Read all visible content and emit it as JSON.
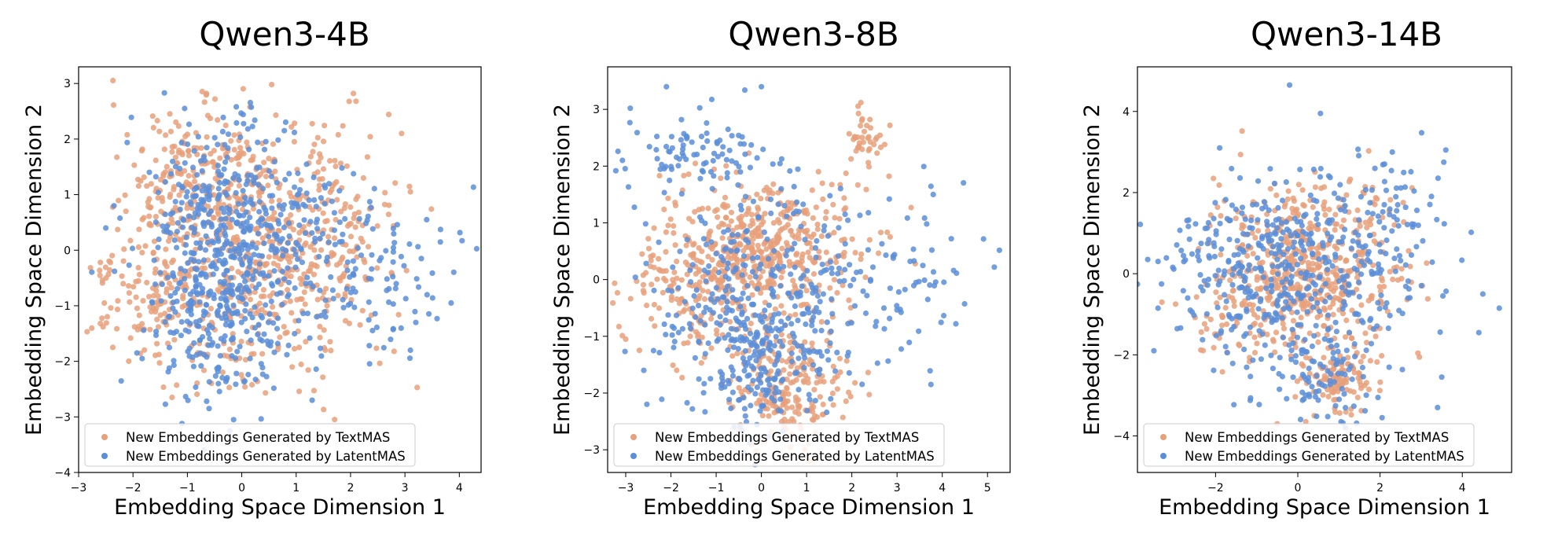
{
  "chart_data": [
    {
      "type": "scatter",
      "title": "Qwen3-4B",
      "xlabel": "Embedding Space Dimension 1",
      "ylabel": "Embedding Space Dimension 2",
      "xlim": [
        -3.0,
        4.4
      ],
      "ylim": [
        -4.0,
        3.3
      ],
      "xticks": [
        -3,
        -2,
        -1,
        0,
        1,
        2,
        3,
        4
      ],
      "yticks": [
        -4,
        -3,
        -2,
        -1,
        0,
        1,
        2,
        3
      ],
      "legend_position": "lower-left",
      "series": [
        {
          "name": "New Embeddings Generated by TextMAS",
          "color": "#e8a07a",
          "clusters": [
            {
              "center": [
                0.0,
                -0.6
              ],
              "spread": [
                1.1,
                0.9
              ],
              "count": 420
            },
            {
              "center": [
                -0.7,
                1.2
              ],
              "spread": [
                0.8,
                0.7
              ],
              "count": 260
            },
            {
              "center": [
                1.5,
                0.7
              ],
              "spread": [
                0.7,
                0.8
              ],
              "count": 140
            },
            {
              "center": [
                -1.8,
                -0.9
              ],
              "spread": [
                0.5,
                0.5
              ],
              "count": 80
            }
          ],
          "points": [
            [
              0.55,
              2.98
            ],
            [
              -0.65,
              2.82
            ],
            [
              2.1,
              2.68
            ],
            [
              -2.6,
              -0.22
            ],
            [
              -2.55,
              -1.38
            ],
            [
              2.8,
              -1.82
            ],
            [
              3.1,
              1.05
            ]
          ]
        },
        {
          "name": "New Embeddings Generated by LatentMAS",
          "color": "#5b8ed8",
          "clusters": [
            {
              "center": [
                -0.3,
                0.6
              ],
              "spread": [
                0.7,
                0.8
              ],
              "count": 320
            },
            {
              "center": [
                -0.4,
                -1.3
              ],
              "spread": [
                0.6,
                0.7
              ],
              "count": 200
            },
            {
              "center": [
                0.8,
                0.0
              ],
              "spread": [
                1.2,
                1.0
              ],
              "count": 180
            },
            {
              "center": [
                2.6,
                -0.6
              ],
              "spread": [
                0.6,
                0.7
              ],
              "count": 60
            }
          ],
          "points": [
            [
              -0.1,
              2.58
            ],
            [
              -1.05,
              2.55
            ],
            [
              -1.1,
              -3.12
            ],
            [
              -0.15,
              -3.05
            ],
            [
              -0.22,
              -3.25
            ],
            [
              3.4,
              0.55
            ],
            [
              4.05,
              0.17
            ],
            [
              3.85,
              -0.95
            ],
            [
              3.2,
              -1.3
            ],
            [
              3.1,
              -1.8
            ],
            [
              -2.5,
              0.4
            ],
            [
              -2.35,
              0.8
            ]
          ]
        }
      ]
    },
    {
      "type": "scatter",
      "title": "Qwen3-8B",
      "xlabel": "Embedding Space Dimension 1",
      "ylabel": "Embedding Space Dimension 2",
      "xlim": [
        -3.4,
        5.5
      ],
      "ylim": [
        -3.4,
        3.75
      ],
      "xticks": [
        -3,
        -2,
        -1,
        0,
        1,
        2,
        3,
        4,
        5
      ],
      "yticks": [
        -3,
        -2,
        -1,
        0,
        1,
        2,
        3
      ],
      "legend_position": "lower-left",
      "series": [
        {
          "name": "New Embeddings Generated by TextMAS",
          "color": "#e8a07a",
          "clusters": [
            {
              "center": [
                0.0,
                0.55
              ],
              "spread": [
                1.0,
                0.6
              ],
              "count": 460
            },
            {
              "center": [
                0.6,
                -1.8
              ],
              "spread": [
                0.7,
                0.5
              ],
              "count": 210
            },
            {
              "center": [
                -1.3,
                -0.3
              ],
              "spread": [
                0.9,
                0.6
              ],
              "count": 150
            },
            {
              "center": [
                2.3,
                2.5
              ],
              "spread": [
                0.25,
                0.35
              ],
              "count": 40
            }
          ],
          "points": [
            [
              -3.0,
              -1.05
            ],
            [
              2.2,
              3.12
            ],
            [
              2.4,
              2.82
            ],
            [
              0.5,
              -2.55
            ],
            [
              1.2,
              -2.7
            ]
          ]
        },
        {
          "name": "New Embeddings Generated by LatentMAS",
          "color": "#5b8ed8",
          "clusters": [
            {
              "center": [
                0.1,
                -0.3
              ],
              "spread": [
                1.2,
                0.9
              ],
              "count": 340
            },
            {
              "center": [
                -1.3,
                2.2
              ],
              "spread": [
                0.8,
                0.5
              ],
              "count": 90
            },
            {
              "center": [
                0.0,
                -1.6
              ],
              "spread": [
                0.6,
                0.6
              ],
              "count": 120
            },
            {
              "center": [
                3.1,
                0.2
              ],
              "spread": [
                0.8,
                0.9
              ],
              "count": 60
            }
          ],
          "points": [
            [
              0.0,
              3.4
            ],
            [
              -2.1,
              3.4
            ],
            [
              -2.9,
              3.02
            ],
            [
              5.15,
              0.22
            ],
            [
              4.3,
              -0.78
            ],
            [
              3.75,
              -1.85
            ],
            [
              3.8,
              1.5
            ],
            [
              4.2,
              0.72
            ],
            [
              -2.6,
              -1.6
            ],
            [
              -0.6,
              -2.6
            ]
          ]
        }
      ]
    },
    {
      "type": "scatter",
      "title": "Qwen3-14B",
      "xlabel": "Embedding Space Dimension 1",
      "ylabel": "Embedding Space Dimension 2",
      "xlim": [
        -3.9,
        5.2
      ],
      "ylim": [
        -4.9,
        5.1
      ],
      "xticks": [
        -2,
        0,
        2,
        4
      ],
      "yticks": [
        -4,
        -2,
        0,
        2,
        4
      ],
      "legend_position": "lower-left",
      "series": [
        {
          "name": "New Embeddings Generated by TextMAS",
          "color": "#e8a07a",
          "clusters": [
            {
              "center": [
                0.2,
                0.2
              ],
              "spread": [
                1.1,
                1.0
              ],
              "count": 520
            },
            {
              "center": [
                1.0,
                -2.6
              ],
              "spread": [
                0.45,
                0.45
              ],
              "count": 110
            },
            {
              "center": [
                -1.4,
                -1.0
              ],
              "spread": [
                0.6,
                0.5
              ],
              "count": 60
            }
          ],
          "points": [
            [
              2.35,
              1.2
            ],
            [
              -0.5,
              -3.7
            ],
            [
              0.4,
              -3.5
            ]
          ]
        },
        {
          "name": "New Embeddings Generated by LatentMAS",
          "color": "#5b8ed8",
          "clusters": [
            {
              "center": [
                -0.4,
                0.0
              ],
              "spread": [
                1.4,
                1.1
              ],
              "count": 440
            },
            {
              "center": [
                0.6,
                -2.4
              ],
              "spread": [
                0.8,
                0.7
              ],
              "count": 90
            },
            {
              "center": [
                2.2,
                1.3
              ],
              "spread": [
                0.7,
                0.9
              ],
              "count": 70
            }
          ],
          "points": [
            [
              -0.2,
              4.65
            ],
            [
              0.55,
              3.95
            ],
            [
              -1.9,
              3.1
            ],
            [
              3.6,
              3.05
            ],
            [
              3.55,
              2.75
            ],
            [
              4.9,
              -0.85
            ],
            [
              4.5,
              -0.5
            ],
            [
              3.5,
              -2.55
            ],
            [
              -3.5,
              -1.9
            ],
            [
              -3.4,
              -0.85
            ],
            [
              -3.65,
              0.35
            ],
            [
              2.05,
              -3.55
            ],
            [
              3.4,
              -3.3
            ]
          ]
        }
      ]
    }
  ]
}
